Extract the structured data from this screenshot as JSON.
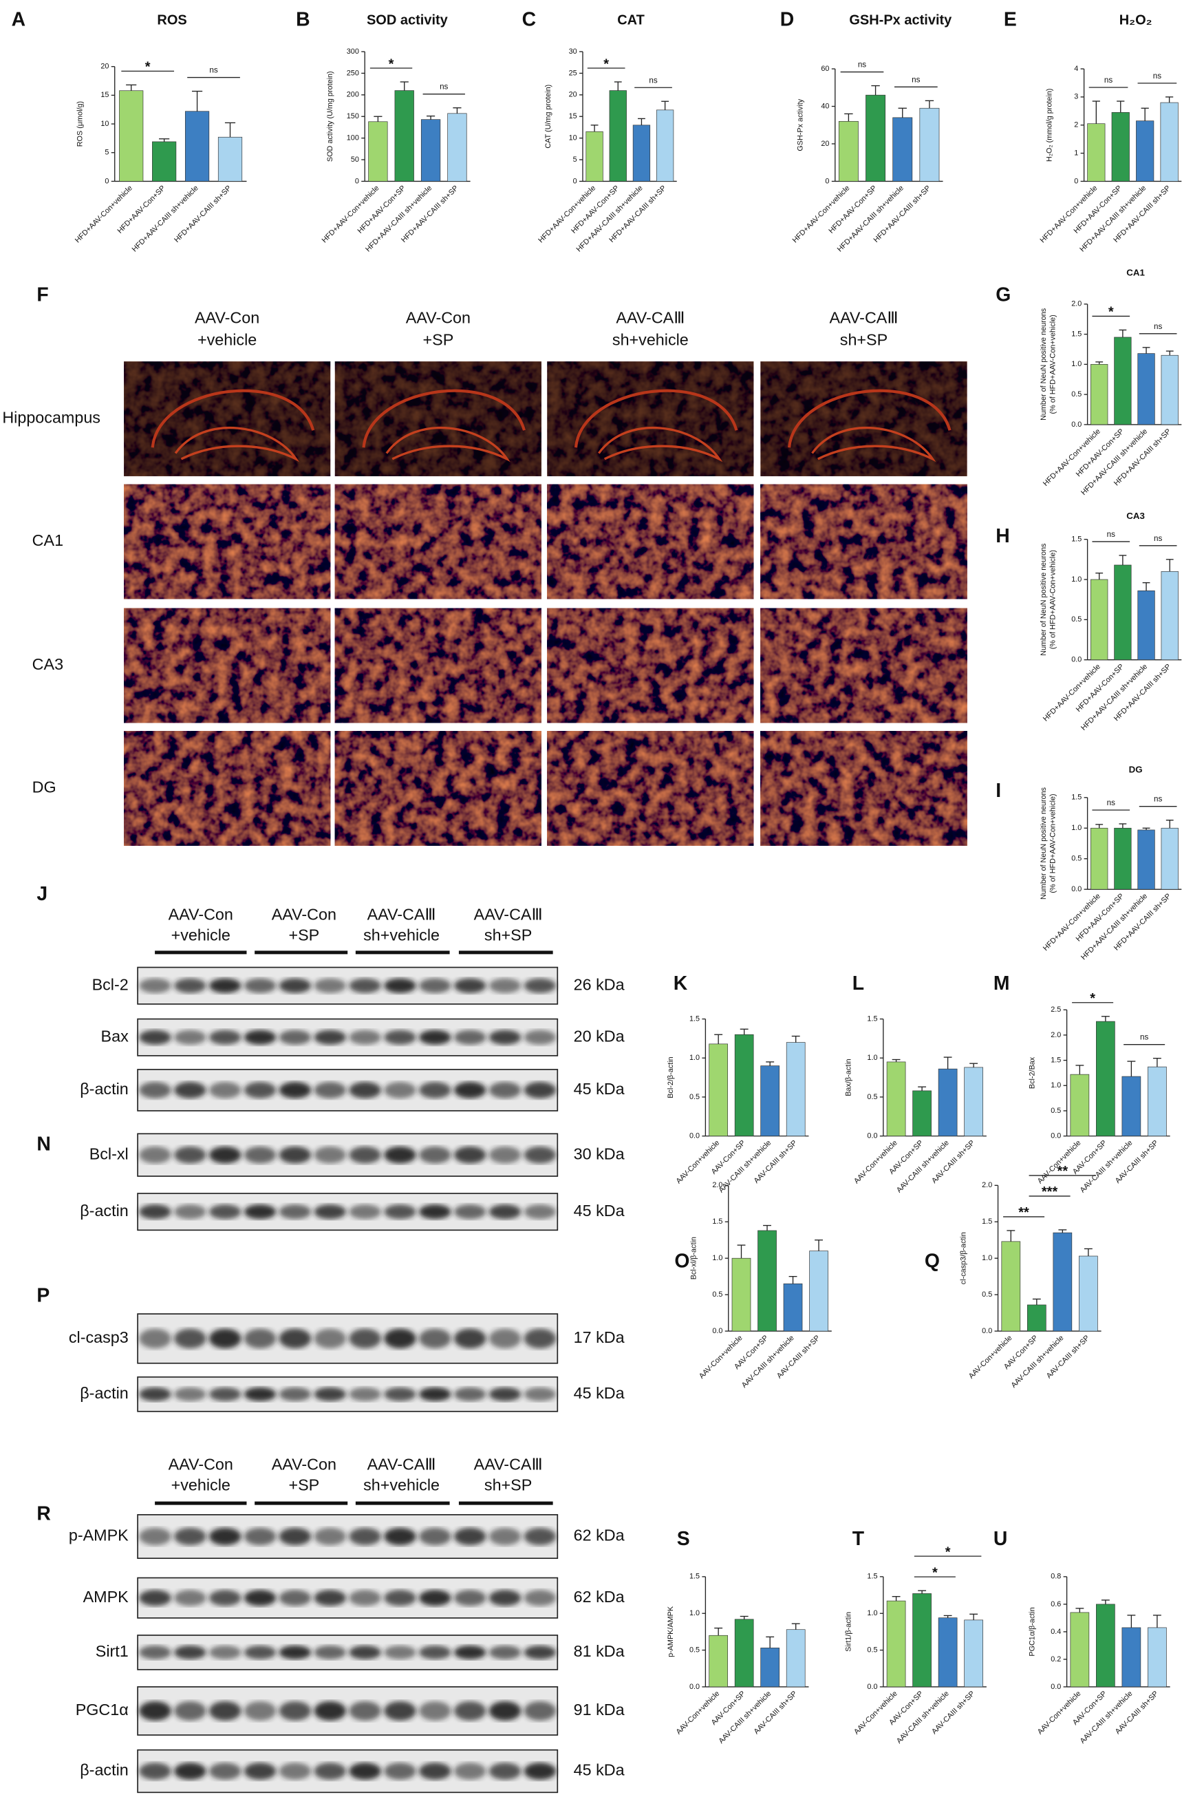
{
  "chart_data": [
    {
      "letter": "A",
      "type": "bar",
      "title": "ROS",
      "ylabel": "ROS (μmol/g)",
      "categories": [
        "HFD+AAV-Con+vehicle",
        "HFD+AAV-Con+SP",
        "HFD+AAV-CAIII sh+vehicle",
        "HFD+AAV-CAIII sh+SP"
      ],
      "values": [
        15.8,
        6.9,
        12.2,
        7.7
      ],
      "errors": [
        1.0,
        0.5,
        3.5,
        2.5
      ],
      "colors": [
        "#9fd66f",
        "#2f9a4e",
        "#3d7fc2",
        "#a9d4ef"
      ],
      "ylim": [
        0,
        20
      ],
      "yticks": [
        0,
        5,
        10,
        15,
        20
      ],
      "brackets": [
        {
          "label": "*",
          "between": [
            "HFD+AAV-Con+vehicle",
            "HFD+AAV-Con+SP"
          ]
        },
        {
          "label": "ns",
          "between": [
            "HFD+AAV-CAIII sh+vehicle",
            "HFD+AAV-CAIII sh+SP"
          ]
        }
      ]
    },
    {
      "letter": "B",
      "type": "bar",
      "title": "SOD activity",
      "ylabel": "SOD activity (U/mg protein)",
      "categories": [
        "HFD+AAV-Con+vehicle",
        "HFD+AAV-Con+SP",
        "HFD+AAV-CAIII sh+vehicle",
        "HFD+AAV-CAIII sh+SP"
      ],
      "values": [
        138,
        210,
        143,
        157
      ],
      "errors": [
        12,
        20,
        8,
        13
      ],
      "colors": [
        "#9fd66f",
        "#2f9a4e",
        "#3d7fc2",
        "#a9d4ef"
      ],
      "ylim": [
        0,
        300
      ],
      "yticks": [
        0,
        50,
        100,
        150,
        200,
        250,
        300
      ],
      "brackets": [
        {
          "label": "*",
          "between": [
            "HFD+AAV-Con+vehicle",
            "HFD+AAV-Con+SP"
          ]
        },
        {
          "label": "ns",
          "between": [
            "HFD+AAV-CAIII sh+vehicle",
            "HFD+AAV-CAIII sh+SP"
          ]
        }
      ]
    },
    {
      "letter": "C",
      "type": "bar",
      "title": "CAT",
      "ylabel": "CAT (U/mg protein)",
      "categories": [
        "HFD+AAV-Con+vehicle",
        "HFD+AAV-Con+SP",
        "HFD+AAV-CAIII sh+vehicle",
        "HFD+AAV-CAIII sh+SP"
      ],
      "values": [
        11.5,
        21,
        13,
        16.5
      ],
      "errors": [
        1.5,
        2,
        1.5,
        2
      ],
      "colors": [
        "#9fd66f",
        "#2f9a4e",
        "#3d7fc2",
        "#a9d4ef"
      ],
      "ylim": [
        0,
        30
      ],
      "yticks": [
        0,
        5,
        10,
        15,
        20,
        25,
        30
      ],
      "brackets": [
        {
          "label": "*",
          "between": [
            "HFD+AAV-Con+vehicle",
            "HFD+AAV-Con+SP"
          ]
        },
        {
          "label": "ns",
          "between": [
            "HFD+AAV-CAIII sh+vehicle",
            "HFD+AAV-CAIII sh+SP"
          ]
        }
      ]
    },
    {
      "letter": "D",
      "type": "bar",
      "title": "GSH-Px activity",
      "ylabel": "GSH-Px activity",
      "categories": [
        "HFD+AAV-Con+vehicle",
        "HFD+AAV-Con+SP",
        "HFD+AAV-CAIII sh+vehicle",
        "HFD+AAV-CAIII sh+SP"
      ],
      "values": [
        32,
        46,
        34,
        39
      ],
      "errors": [
        4,
        5,
        5,
        4
      ],
      "colors": [
        "#9fd66f",
        "#2f9a4e",
        "#3d7fc2",
        "#a9d4ef"
      ],
      "ylim": [
        0,
        60
      ],
      "yticks": [
        0,
        20,
        40,
        60
      ],
      "brackets": [
        {
          "label": "ns",
          "between": [
            "HFD+AAV-Con+vehicle",
            "HFD+AAV-Con+SP"
          ]
        },
        {
          "label": "ns",
          "between": [
            "HFD+AAV-CAIII sh+vehicle",
            "HFD+AAV-CAIII sh+SP"
          ]
        }
      ]
    },
    {
      "letter": "E",
      "type": "bar",
      "title": "H₂O₂",
      "ylabel": "H₂O₂ (mmol/g protein)",
      "categories": [
        "HFD+AAV-Con+vehicle",
        "HFD+AAV-Con+SP",
        "HFD+AAV-CAIII sh+vehicle",
        "HFD+AAV-CAIII sh+SP"
      ],
      "values": [
        2.05,
        2.45,
        2.15,
        2.8
      ],
      "errors": [
        0.8,
        0.4,
        0.45,
        0.2
      ],
      "colors": [
        "#9fd66f",
        "#2f9a4e",
        "#3d7fc2",
        "#a9d4ef"
      ],
      "ylim": [
        0,
        4
      ],
      "yticks": [
        0,
        1,
        2,
        3,
        4
      ],
      "brackets": [
        {
          "label": "ns",
          "between": [
            "HFD+AAV-Con+vehicle",
            "HFD+AAV-Con+SP"
          ]
        },
        {
          "label": "ns",
          "between": [
            "HFD+AAV-CAIII sh+vehicle",
            "HFD+AAV-CAIII sh+SP"
          ]
        }
      ]
    },
    {
      "letter": "G",
      "type": "bar",
      "title": "CA1",
      "ylabel": [
        "Number of NeuN positive neurons",
        "(% of HFD+AAV-Con+vehicle)"
      ],
      "categories": [
        "HFD+AAV-Con+vehicle",
        "HFD+AAV-Con+SP",
        "HFD+AAV-CAIII sh+vehicle",
        "HFD+AAV-CAIII sh+SP"
      ],
      "values": [
        1.0,
        1.45,
        1.18,
        1.15
      ],
      "errors": [
        0.04,
        0.12,
        0.1,
        0.07
      ],
      "colors": [
        "#9fd66f",
        "#2f9a4e",
        "#3d7fc2",
        "#a9d4ef"
      ],
      "ylim": [
        0,
        2
      ],
      "yticks": [
        {
          "value": 0,
          "label": "0.0"
        },
        0.5,
        {
          "value": 1,
          "label": "1.0"
        },
        1.5,
        {
          "value": 2,
          "label": "2.0"
        }
      ],
      "brackets": [
        {
          "label": "*",
          "between": [
            "HFD+AAV-Con+vehicle",
            "HFD+AAV-Con+SP"
          ]
        },
        {
          "label": "ns",
          "between": [
            "HFD+AAV-CAIII sh+vehicle",
            "HFD+AAV-CAIII sh+SP"
          ]
        }
      ]
    },
    {
      "letter": "H",
      "type": "bar",
      "title": "CA3",
      "ylabel": [
        "Number of NeuN positive neurons",
        "(% of HFD+AAV-Con+vehicle)"
      ],
      "categories": [
        "HFD+AAV-Con+vehicle",
        "HFD+AAV-Con+SP",
        "HFD+AAV-CAIII sh+vehicle",
        "HFD+AAV-CAIII sh+SP"
      ],
      "values": [
        1.0,
        1.18,
        0.86,
        1.1
      ],
      "errors": [
        0.08,
        0.12,
        0.1,
        0.15
      ],
      "colors": [
        "#9fd66f",
        "#2f9a4e",
        "#3d7fc2",
        "#a9d4ef"
      ],
      "ylim": [
        0,
        1.5
      ],
      "yticks": [
        {
          "value": 0,
          "label": "0.0"
        },
        0.5,
        {
          "value": 1,
          "label": "1.0"
        },
        1.5
      ],
      "brackets": [
        {
          "label": "ns",
          "between": [
            "HFD+AAV-Con+vehicle",
            "HFD+AAV-Con+SP"
          ]
        },
        {
          "label": "ns",
          "between": [
            "HFD+AAV-CAIII sh+vehicle",
            "HFD+AAV-CAIII sh+SP"
          ]
        }
      ]
    },
    {
      "letter": "I",
      "type": "bar",
      "title": "DG",
      "ylabel": [
        "Number of NeuN positive neurons",
        "(% of HFD+AAV-Con+vehicle)"
      ],
      "categories": [
        "HFD+AAV-Con+vehicle",
        "HFD+AAV-Con+SP",
        "HFD+AAV-CAIII sh+vehicle",
        "HFD+AAV-CAIII sh+SP"
      ],
      "values": [
        1.0,
        1.0,
        0.97,
        1.0
      ],
      "errors": [
        0.06,
        0.07,
        0.03,
        0.13
      ],
      "colors": [
        "#9fd66f",
        "#2f9a4e",
        "#3d7fc2",
        "#a9d4ef"
      ],
      "ylim": [
        0,
        1.5
      ],
      "yticks": [
        {
          "value": 0,
          "label": "0.0"
        },
        0.5,
        {
          "value": 1,
          "label": "1.0"
        },
        1.5
      ],
      "brackets": [
        {
          "label": "ns",
          "between": [
            "HFD+AAV-Con+vehicle",
            "HFD+AAV-Con+SP"
          ]
        },
        {
          "label": "ns",
          "between": [
            "HFD+AAV-CAIII sh+vehicle",
            "HFD+AAV-CAIII sh+SP"
          ]
        }
      ]
    },
    {
      "letter": "K",
      "type": "bar",
      "ylabel": "Bcl-2/β-actin",
      "categories": [
        "AAV-Con+vehicle",
        "AAV-Con+SP",
        "AAV-CAIII sh+vehicle",
        "AAV-CAIII sh+SP"
      ],
      "values": [
        1.18,
        1.3,
        0.9,
        1.2
      ],
      "errors": [
        0.12,
        0.07,
        0.05,
        0.08
      ],
      "colors": [
        "#9fd66f",
        "#2f9a4e",
        "#3d7fc2",
        "#a9d4ef"
      ],
      "ylim": [
        0,
        1.5
      ],
      "yticks": [
        {
          "value": 0,
          "label": "0.0"
        },
        0.5,
        {
          "value": 1,
          "label": "1.0"
        },
        1.5
      ],
      "brackets": []
    },
    {
      "letter": "L",
      "type": "bar",
      "ylabel": "Bax/β-actin",
      "categories": [
        "AAV-Con+vehicle",
        "AAV-Con+SP",
        "AAV-CAIII sh+vehicle",
        "AAV-CAIII sh+SP"
      ],
      "values": [
        0.95,
        0.58,
        0.86,
        0.88
      ],
      "errors": [
        0.03,
        0.05,
        0.15,
        0.05
      ],
      "colors": [
        "#9fd66f",
        "#2f9a4e",
        "#3d7fc2",
        "#a9d4ef"
      ],
      "ylim": [
        0,
        1.5
      ],
      "yticks": [
        {
          "value": 0,
          "label": "0.0"
        },
        0.5,
        {
          "value": 1,
          "label": "1.0"
        },
        1.5
      ],
      "brackets": []
    },
    {
      "letter": "M",
      "type": "bar",
      "ylabel": "Bcl-2/Bax",
      "categories": [
        "AAV-Con+vehicle",
        "AAV-Con+SP",
        "AAV-CAIII sh+vehicle",
        "AAV-CAIII sh+SP"
      ],
      "values": [
        1.22,
        2.27,
        1.18,
        1.37
      ],
      "errors": [
        0.18,
        0.1,
        0.3,
        0.17
      ],
      "colors": [
        "#9fd66f",
        "#2f9a4e",
        "#3d7fc2",
        "#a9d4ef"
      ],
      "ylim": [
        0,
        2.5
      ],
      "yticks": [
        {
          "value": 0,
          "label": "0.0"
        },
        0.5,
        {
          "value": 1,
          "label": "1.0"
        },
        1.5,
        {
          "value": 2,
          "label": "2.0"
        },
        2.5
      ],
      "brackets": [
        {
          "label": "*",
          "between": [
            "AAV-Con+vehicle",
            "AAV-Con+SP"
          ]
        },
        {
          "label": "ns",
          "between": [
            "AAV-CAIII sh+vehicle",
            "AAV-CAIII sh+SP"
          ]
        }
      ]
    },
    {
      "letter": "O",
      "type": "bar",
      "ylabel": "Bcl-xl/β-actin",
      "categories": [
        "AAV-Con+vehicle",
        "AAV-Con+SP",
        "AAV-CAIII sh+vehicle",
        "AAV-CAIII sh+SP"
      ],
      "values": [
        1.0,
        1.38,
        0.65,
        1.1
      ],
      "errors": [
        0.18,
        0.07,
        0.1,
        0.15
      ],
      "colors": [
        "#9fd66f",
        "#2f9a4e",
        "#3d7fc2",
        "#a9d4ef"
      ],
      "ylim": [
        0,
        2
      ],
      "yticks": [
        {
          "value": 0,
          "label": "0.0"
        },
        0.5,
        {
          "value": 1,
          "label": "1.0"
        },
        1.5,
        {
          "value": 2,
          "label": "2.0"
        }
      ],
      "brackets": []
    },
    {
      "letter": "Q",
      "type": "bar",
      "ylabel": "cl-casp3/β-actin",
      "categories": [
        "AAV-Con+vehicle",
        "AAV-Con+SP",
        "AAV-CAIII sh+vehicle",
        "AAV-CAIII sh+SP"
      ],
      "values": [
        1.23,
        0.36,
        1.35,
        1.03
      ],
      "errors": [
        0.15,
        0.08,
        0.04,
        0.1
      ],
      "colors": [
        "#9fd66f",
        "#2f9a4e",
        "#3d7fc2",
        "#a9d4ef"
      ],
      "ylim": [
        0,
        2
      ],
      "yticks": [
        {
          "value": 0,
          "label": "0.0"
        },
        0.5,
        {
          "value": 1,
          "label": "1.0"
        },
        1.5,
        {
          "value": 2,
          "label": "2.0"
        }
      ],
      "brackets": [
        {
          "label": "**",
          "between": [
            "AAV-Con+vehicle",
            "AAV-Con+SP"
          ]
        },
        {
          "label": "***",
          "between": [
            "AAV-Con+SP",
            "AAV-CAIII sh+vehicle"
          ]
        },
        {
          "label": "**",
          "between": [
            "AAV-Con+SP",
            "AAV-CAIII sh+SP"
          ]
        }
      ]
    },
    {
      "letter": "S",
      "type": "bar",
      "ylabel": "p-AMPK/AMPK",
      "categories": [
        "AAV-Con+vehicle",
        "AAV-Con+SP",
        "AAV-CAIII sh+vehicle",
        "AAV-CAIII sh+SP"
      ],
      "values": [
        0.7,
        0.92,
        0.53,
        0.78
      ],
      "errors": [
        0.1,
        0.04,
        0.15,
        0.08
      ],
      "colors": [
        "#9fd66f",
        "#2f9a4e",
        "#3d7fc2",
        "#a9d4ef"
      ],
      "ylim": [
        0,
        1.5
      ],
      "yticks": [
        {
          "value": 0,
          "label": "0.0"
        },
        0.5,
        {
          "value": 1,
          "label": "1.0"
        },
        1.5
      ],
      "brackets": []
    },
    {
      "letter": "T",
      "type": "bar",
      "ylabel": "Sirt1/β-actin",
      "categories": [
        "AAV-Con+vehicle",
        "AAV-Con+SP",
        "AAV-CAIII sh+vehicle",
        "AAV-CAIII sh+SP"
      ],
      "values": [
        1.17,
        1.27,
        0.94,
        0.91
      ],
      "errors": [
        0.06,
        0.04,
        0.03,
        0.08
      ],
      "colors": [
        "#9fd66f",
        "#2f9a4e",
        "#3d7fc2",
        "#a9d4ef"
      ],
      "ylim": [
        0,
        1.5
      ],
      "yticks": [
        {
          "value": 0,
          "label": "0.0"
        },
        0.5,
        {
          "value": 1,
          "label": "1.0"
        },
        1.5
      ],
      "brackets": [
        {
          "label": "*",
          "between": [
            "AAV-Con+SP",
            "AAV-CAIII sh+vehicle"
          ]
        },
        {
          "label": "*",
          "between": [
            "AAV-Con+SP",
            "AAV-CAIII sh+SP"
          ]
        }
      ]
    },
    {
      "letter": "U",
      "type": "bar",
      "ylabel": "PGC1α/β-actin",
      "categories": [
        "AAV-Con+vehicle",
        "AAV-Con+SP",
        "AAV-CAIII sh+vehicle",
        "AAV-CAIII sh+SP"
      ],
      "values": [
        0.54,
        0.6,
        0.43,
        0.43
      ],
      "errors": [
        0.03,
        0.03,
        0.09,
        0.09
      ],
      "colors": [
        "#9fd66f",
        "#2f9a4e",
        "#3d7fc2",
        "#a9d4ef"
      ],
      "ylim": [
        0,
        0.8
      ],
      "yticks": [
        {
          "value": 0,
          "label": "0.0"
        },
        0.2,
        0.4,
        0.6,
        0.8
      ],
      "brackets": []
    }
  ],
  "micrographs": {
    "letter": "F",
    "columns": [
      [
        "AAV-Con",
        "+vehicle"
      ],
      [
        "AAV-Con",
        "+SP"
      ],
      [
        "AAV-CAⅢ",
        "sh+vehicle"
      ],
      [
        "AAV-CAⅢ",
        "sh+SP"
      ]
    ],
    "rows": [
      "Hippocampus",
      "CA1",
      "CA3",
      "DG"
    ]
  },
  "blots": [
    {
      "letter": "J",
      "headers": [
        [
          "AAV-Con",
          "+vehicle"
        ],
        [
          "AAV-Con",
          "+SP"
        ],
        [
          "AAV-CAⅢ",
          "sh+vehicle"
        ],
        [
          "AAV-CAⅢ",
          "sh+SP"
        ]
      ],
      "rows": [
        {
          "label": "Bcl-2",
          "size": "26 kDa"
        },
        {
          "label": "Bax",
          "size": "20 kDa"
        },
        {
          "label": "β-actin",
          "size": "45 kDa"
        }
      ]
    },
    {
      "letter": "N",
      "rows": [
        {
          "label": "Bcl-xl",
          "size": "30 kDa"
        },
        {
          "label": "β-actin",
          "size": "45 kDa"
        }
      ]
    },
    {
      "letter": "P",
      "rows": [
        {
          "label": "cl-casp3",
          "size": "17 kDa"
        },
        {
          "label": "β-actin",
          "size": "45 kDa"
        }
      ]
    },
    {
      "letter": "R",
      "headers": [
        [
          "AAV-Con",
          "+vehicle"
        ],
        [
          "AAV-Con",
          "+SP"
        ],
        [
          "AAV-CAⅢ",
          "sh+vehicle"
        ],
        [
          "AAV-CAⅢ",
          "sh+SP"
        ]
      ],
      "rows": [
        {
          "label": "p-AMPK",
          "size": "62 kDa"
        },
        {
          "label": "AMPK",
          "size": "62 kDa"
        },
        {
          "label": "Sirt1",
          "size": "81 kDa"
        },
        {
          "label": "PGC1α",
          "size": "91 kDa"
        },
        {
          "label": "β-actin",
          "size": "45 kDa"
        }
      ]
    }
  ]
}
